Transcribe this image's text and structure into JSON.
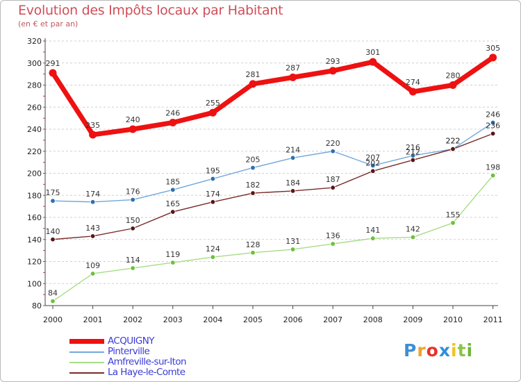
{
  "header": {
    "title": "Evolution des Impôts locaux par Habitant",
    "subtitle": "(en € et par an)"
  },
  "logo": {
    "letters": [
      "P",
      "r",
      "o",
      "x",
      "i",
      "t",
      "i"
    ],
    "colors": [
      "#3d8fd6",
      "#f0a32a",
      "#e5332a",
      "#2f8fd9",
      "#f5c21b",
      "#8bc34a",
      "#6fb63b"
    ]
  },
  "chart_data": {
    "type": "line",
    "title": "Evolution des Impôts locaux par Habitant",
    "subtitle": "(en € et par an)",
    "xlabel": "",
    "ylabel": "",
    "ylim": [
      80,
      320
    ],
    "yticks": [
      80,
      100,
      120,
      140,
      160,
      180,
      200,
      220,
      240,
      260,
      280,
      300,
      320
    ],
    "grid": "horizontal dashed",
    "legend": "bottom-left",
    "x": [
      "2000",
      "2001",
      "2002",
      "2003",
      "2004",
      "2005",
      "2006",
      "2007",
      "2008",
      "2009",
      "2010",
      "2011"
    ],
    "series": [
      {
        "name": "ACQUIGNY",
        "color": "#ee1111",
        "marker": "#ee1111",
        "values": [
          291,
          235,
          240,
          246,
          255,
          281,
          287,
          293,
          301,
          274,
          280,
          305
        ],
        "labels": [
          "291",
          "235",
          "240",
          "246",
          "255",
          "281",
          "287",
          "293",
          "301",
          "274",
          "280",
          "305"
        ]
      },
      {
        "name": "Pinterville",
        "color": "#6fa8dc",
        "marker": "#2e6fb0",
        "values": [
          175,
          174,
          176,
          185,
          195,
          205,
          214,
          220,
          207,
          216,
          222,
          246
        ],
        "labels": [
          "175",
          "174",
          "176",
          "185",
          "195",
          "205",
          "214",
          "220",
          "207",
          "216",
          "222",
          "246"
        ]
      },
      {
        "name": "Amfreville-sur-Iton",
        "color": "#a6dd84",
        "marker": "#6cc13a",
        "values": [
          84,
          109,
          114,
          119,
          124,
          128,
          131,
          136,
          141,
          142,
          155,
          198
        ],
        "labels": [
          "84",
          "109",
          "114",
          "119",
          "124",
          "128",
          "131",
          "136",
          "141",
          "142",
          "155",
          "198"
        ]
      },
      {
        "name": "La Haye-le-Comte",
        "color": "#7a2a2a",
        "marker": "#5a1616",
        "values": [
          140,
          143,
          150,
          165,
          174,
          182,
          184,
          187,
          202,
          212,
          222,
          236
        ],
        "labels": [
          "140",
          "143",
          "150",
          "165",
          "174",
          "182",
          "184",
          "187",
          "202",
          "212",
          "222",
          "236"
        ]
      }
    ]
  },
  "legend": {
    "text_color": "#3b3bd6",
    "items": [
      {
        "name": "ACQUIGNY",
        "color": "#ee1111"
      },
      {
        "name": "Pinterville",
        "color": "#6fa8dc"
      },
      {
        "name": "Amfreville-sur-Iton",
        "color": "#a6dd84"
      },
      {
        "name": "La Haye-le-Comte",
        "color": "#7a2a2a"
      }
    ]
  }
}
